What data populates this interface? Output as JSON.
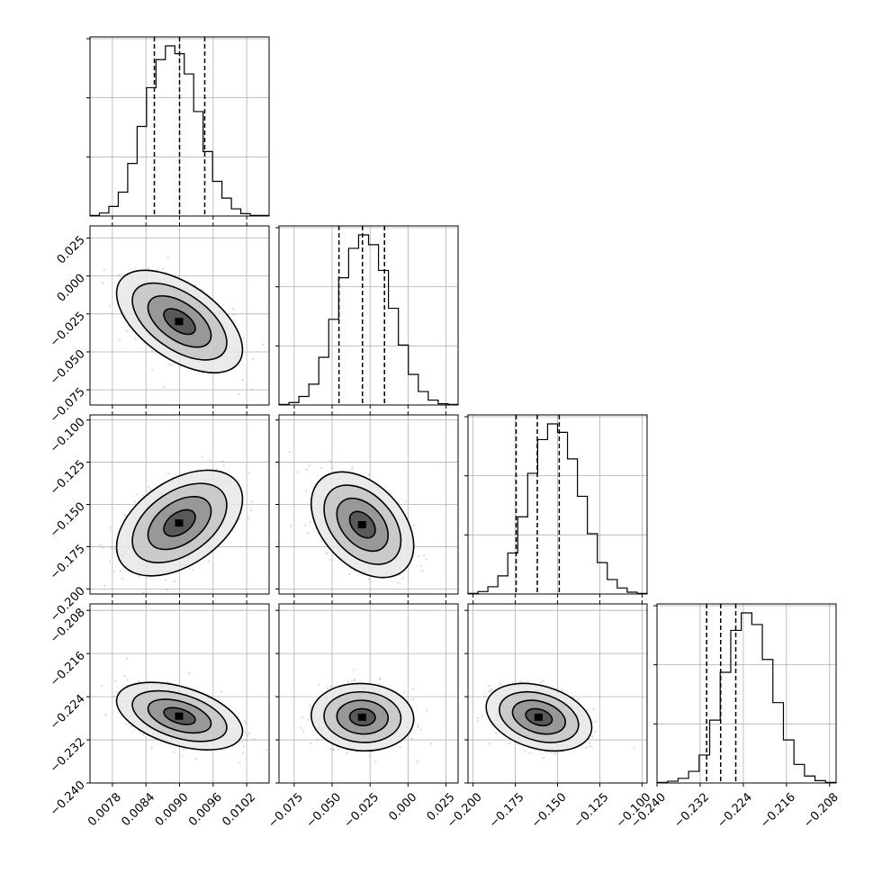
{
  "chart_data": {
    "type": "corner",
    "grid": true,
    "n_params": 4,
    "params": [
      {
        "range": [
          0.0074,
          0.0106
        ],
        "ticks": [
          0.0078,
          0.0084,
          0.009,
          0.0096,
          0.0102
        ],
        "tick_labels": [
          "0.0078",
          "0.0084",
          "0.0090",
          "0.0096",
          "0.0102"
        ],
        "quantiles": [
          0.00855,
          0.009,
          0.00945
        ],
        "hist_counts": [
          1,
          5,
          16,
          40,
          88,
          150,
          215,
          262,
          285,
          272,
          238,
          175,
          108,
          58,
          30,
          12,
          4,
          1,
          1
        ]
      },
      {
        "range": [
          -0.085,
          0.033
        ],
        "ticks": [
          -0.075,
          -0.05,
          -0.025,
          0.0,
          0.025
        ],
        "tick_labels": [
          "−0.075",
          "−0.050",
          "−0.025",
          "0.000",
          "0.025"
        ],
        "quantiles": [
          -0.0455,
          -0.03,
          -0.0155
        ],
        "hist_counts": [
          1,
          4,
          14,
          34,
          78,
          140,
          208,
          256,
          278,
          262,
          220,
          158,
          98,
          50,
          22,
          8,
          2,
          1
        ]
      },
      {
        "range": [
          -0.203,
          -0.097
        ],
        "ticks": [
          -0.2,
          -0.175,
          -0.15,
          -0.125,
          -0.1
        ],
        "tick_labels": [
          "−0.200",
          "−0.175",
          "−0.150",
          "−0.125",
          "−0.100"
        ],
        "quantiles": [
          -0.1745,
          -0.162,
          -0.149
        ],
        "hist_counts": [
          1,
          4,
          12,
          30,
          68,
          128,
          200,
          256,
          282,
          268,
          224,
          162,
          100,
          52,
          24,
          10,
          3,
          1
        ]
      },
      {
        "range": [
          -0.24,
          -0.2068
        ],
        "ticks": [
          -0.24,
          -0.232,
          -0.224,
          -0.216,
          -0.208
        ],
        "tick_labels": [
          "−0.240",
          "−0.232",
          "−0.224",
          "−0.216",
          "−0.208"
        ],
        "quantiles": [
          -0.2308,
          -0.2282,
          -0.2254
        ],
        "hist_counts": [
          1,
          3,
          8,
          20,
          48,
          108,
          190,
          262,
          292,
          272,
          212,
          138,
          74,
          32,
          12,
          4,
          1
        ]
      }
    ],
    "pairs": [
      {
        "row": 1,
        "col": 0,
        "center": [
          0.009,
          -0.03
        ],
        "sd": [
          0.00045,
          0.0135
        ],
        "rho": -0.55
      },
      {
        "row": 2,
        "col": 0,
        "center": [
          0.009,
          -0.161
        ],
        "sd": [
          0.00045,
          0.0125
        ],
        "rho": 0.45
      },
      {
        "row": 2,
        "col": 1,
        "center": [
          -0.03,
          -0.162
        ],
        "sd": [
          0.0135,
          0.0125
        ],
        "rho": -0.4
      },
      {
        "row": 3,
        "col": 0,
        "center": [
          0.009,
          -0.2276
        ],
        "sd": [
          0.00045,
          0.0025
        ],
        "rho": -0.45
      },
      {
        "row": 3,
        "col": 1,
        "center": [
          -0.03,
          -0.2278
        ],
        "sd": [
          0.0135,
          0.0025
        ],
        "rho": -0.05
      },
      {
        "row": 3,
        "col": 2,
        "center": [
          -0.161,
          -0.2278
        ],
        "sd": [
          0.0125,
          0.0025
        ],
        "rho": -0.3
      }
    ],
    "contour_levels_sigma": [
      0.5,
      1.0,
      1.5,
      2.0
    ]
  }
}
